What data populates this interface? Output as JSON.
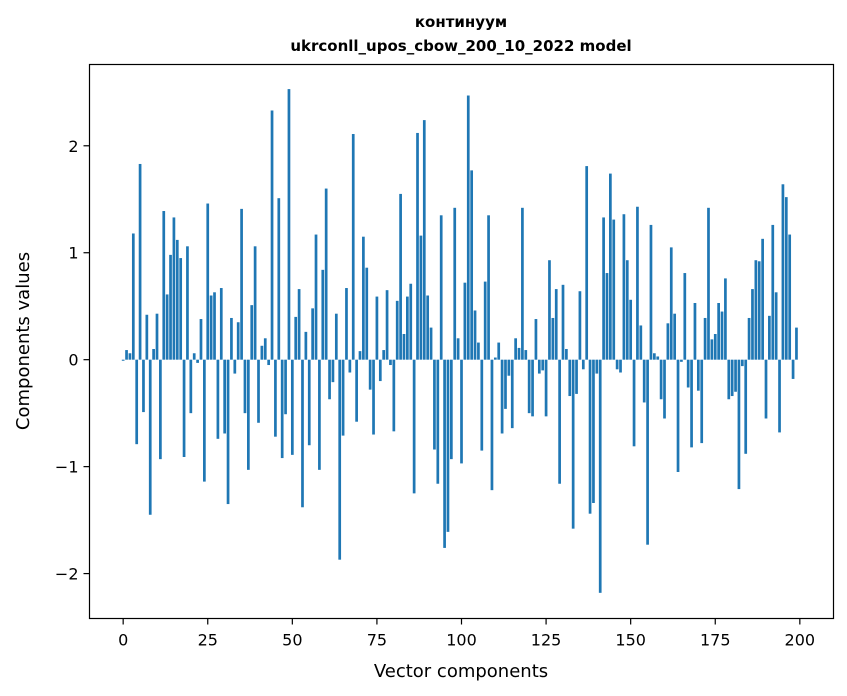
{
  "chart_data": {
    "type": "bar",
    "title": "континуум",
    "subtitle": "ukrconll_upos_cbow_200_10_2022 model",
    "xlabel": "Vector components",
    "ylabel": "Components values",
    "xlim": [
      -9.95,
      209.95
    ],
    "ylim": [
      -2.42,
      2.76
    ],
    "xticks": [
      0,
      25,
      50,
      75,
      100,
      125,
      150,
      175,
      200
    ],
    "xtick_labels": [
      "0",
      "25",
      "50",
      "75",
      "100",
      "125",
      "150",
      "175",
      "200"
    ],
    "yticks": [
      -2,
      -1,
      0,
      1,
      2
    ],
    "ytick_labels": [
      "−2",
      "−1",
      "0",
      "1",
      "2"
    ],
    "bar_color": "#1f77b4",
    "grid": false,
    "x": [
      0,
      1,
      2,
      3,
      4,
      5,
      6,
      7,
      8,
      9,
      10,
      11,
      12,
      13,
      14,
      15,
      16,
      17,
      18,
      19,
      20,
      21,
      22,
      23,
      24,
      25,
      26,
      27,
      28,
      29,
      30,
      31,
      32,
      33,
      34,
      35,
      36,
      37,
      38,
      39,
      40,
      41,
      42,
      43,
      44,
      45,
      46,
      47,
      48,
      49,
      50,
      51,
      52,
      53,
      54,
      55,
      56,
      57,
      58,
      59,
      60,
      61,
      62,
      63,
      64,
      65,
      66,
      67,
      68,
      69,
      70,
      71,
      72,
      73,
      74,
      75,
      76,
      77,
      78,
      79,
      80,
      81,
      82,
      83,
      84,
      85,
      86,
      87,
      88,
      89,
      90,
      91,
      92,
      93,
      94,
      95,
      96,
      97,
      98,
      99,
      100,
      101,
      102,
      103,
      104,
      105,
      106,
      107,
      108,
      109,
      110,
      111,
      112,
      113,
      114,
      115,
      116,
      117,
      118,
      119,
      120,
      121,
      122,
      123,
      124,
      125,
      126,
      127,
      128,
      129,
      130,
      131,
      132,
      133,
      134,
      135,
      136,
      137,
      138,
      139,
      140,
      141,
      142,
      143,
      144,
      145,
      146,
      147,
      148,
      149,
      150,
      151,
      152,
      153,
      154,
      155,
      156,
      157,
      158,
      159,
      160,
      161,
      162,
      163,
      164,
      165,
      166,
      167,
      168,
      169,
      170,
      171,
      172,
      173,
      174,
      175,
      176,
      177,
      178,
      179,
      180,
      181,
      182,
      183,
      184,
      185,
      186,
      187,
      188,
      189,
      190,
      191,
      192,
      193,
      194,
      195,
      196,
      197,
      198,
      199
    ],
    "values": [
      -0.01,
      0.09,
      0.06,
      1.18,
      -0.79,
      1.83,
      -0.49,
      0.42,
      -1.45,
      0.1,
      0.43,
      -0.93,
      1.39,
      0.61,
      0.98,
      1.33,
      1.12,
      0.95,
      -0.91,
      1.06,
      -0.5,
      0.06,
      -0.03,
      0.38,
      -1.14,
      1.46,
      0.6,
      0.63,
      -0.74,
      0.67,
      -0.69,
      -1.35,
      0.39,
      -0.13,
      0.35,
      1.41,
      -0.5,
      -1.03,
      0.51,
      1.06,
      -0.59,
      0.13,
      0.2,
      -0.05,
      2.33,
      -0.72,
      1.51,
      -0.92,
      -0.51,
      2.53,
      -0.89,
      0.4,
      0.66,
      -1.38,
      0.26,
      -0.8,
      0.48,
      1.17,
      -1.03,
      0.84,
      1.6,
      -0.37,
      -0.21,
      0.43,
      -1.87,
      -0.71,
      0.67,
      -0.12,
      2.11,
      -0.58,
      0.08,
      1.15,
      0.86,
      -0.28,
      -0.7,
      0.59,
      -0.2,
      0.09,
      0.65,
      -0.05,
      -0.67,
      0.55,
      1.55,
      0.24,
      0.59,
      0.71,
      -1.25,
      2.12,
      1.16,
      2.24,
      0.6,
      0.3,
      -0.84,
      -1.16,
      1.35,
      -1.76,
      -1.61,
      -0.93,
      1.42,
      0.2,
      -0.97,
      0.72,
      2.47,
      1.77,
      0.46,
      0.16,
      -0.85,
      0.73,
      1.35,
      -1.22,
      0.02,
      0.16,
      -0.69,
      -0.46,
      -0.15,
      -0.64,
      0.2,
      0.11,
      1.42,
      0.09,
      -0.5,
      -0.53,
      0.38,
      -0.13,
      -0.1,
      -0.53,
      0.93,
      0.39,
      0.66,
      -1.16,
      0.7,
      0.1,
      -0.34,
      -1.58,
      -0.32,
      0.64,
      -0.09,
      1.81,
      -1.44,
      -1.34,
      -0.13,
      -2.18,
      1.33,
      0.81,
      1.74,
      1.31,
      -0.09,
      -0.12,
      1.36,
      0.93,
      0.56,
      -0.81,
      1.43,
      0.32,
      -0.4,
      -1.73,
      1.26,
      0.06,
      0.03,
      -0.37,
      -0.55,
      0.34,
      1.05,
      0.43,
      -1.05,
      -0.02,
      0.81,
      -0.26,
      -0.82,
      0.53,
      -0.29,
      -0.78,
      0.39,
      1.42,
      0.19,
      0.24,
      0.53,
      0.45,
      0.76,
      -0.37,
      -0.34,
      -0.3,
      -1.21,
      -0.06,
      -0.88,
      0.39,
      0.66,
      0.93,
      0.92,
      1.13,
      -0.55,
      0.41,
      1.26,
      0.63,
      -0.68,
      1.64,
      1.52,
      1.17,
      -0.18,
      0.3
    ]
  }
}
